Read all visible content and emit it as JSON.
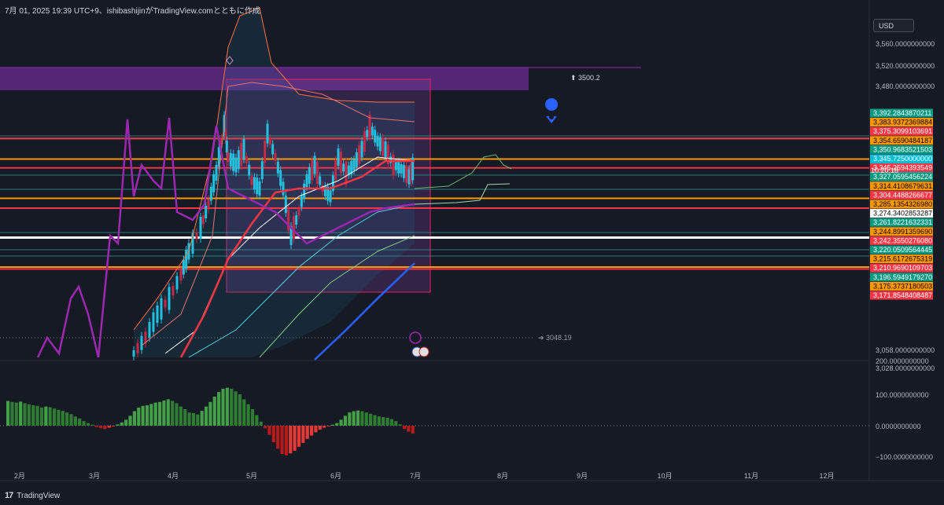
{
  "header": {
    "title": "7月 01, 2025 19:39 UTC+9、ishibashijinがTradingView.comとともに作成"
  },
  "footer": {
    "brand": "TradingView"
  },
  "currency": "USD",
  "timer": "10:20:18",
  "colors": {
    "background": "#161a25",
    "red_line": "#f23645",
    "orange": "#ff9800",
    "teal": "#089981",
    "purple": "#9c27b0",
    "blue": "#2962ff",
    "cyan": "#22c1e0",
    "histogram_up": "#2e7d32",
    "histogram_down": "#b71c1c"
  },
  "chart_data": [
    {
      "type": "candlestick",
      "title": "",
      "xlabel": "",
      "ylabel": "",
      "x_ticks": [
        "2月",
        "3月",
        "4月",
        "5月",
        "6月",
        "7月",
        "8月",
        "9月",
        "10月",
        "11月",
        "12月"
      ],
      "y_ticks": [
        "3,560.0000000000",
        "3,520.0000000000",
        "3,480.0000000000",
        "3,058.0000000000",
        "3,028.0000000000"
      ],
      "ylim": [
        3000,
        3600
      ],
      "annotations": [
        {
          "label": "3500.2",
          "icon": "arrow-up-icon"
        },
        {
          "label": "3048.19",
          "icon": "arrow-right-icon"
        }
      ],
      "price_labels": [
        {
          "value": "3,392.2843870211",
          "color": "#089981"
        },
        {
          "value": "3,383.9372369884",
          "color": "#ff9800"
        },
        {
          "value": "3,375.3099103691",
          "color": "#f23645"
        },
        {
          "value": "3,354.6590484187",
          "color": "#ff9800"
        },
        {
          "value": "3,350.9683521503",
          "color": "#089981"
        },
        {
          "value": "3,345.7250000000",
          "color": "#00bcd4"
        },
        {
          "value": "3,345.2594393549",
          "color": "#f23645"
        },
        {
          "value": "3,327.0595456224",
          "color": "#089981"
        },
        {
          "value": "3,314.4108679631",
          "color": "#ff9800"
        },
        {
          "value": "3,304.4488266677",
          "color": "#f23645"
        },
        {
          "value": "3,285.1354326980",
          "color": "#ff9800"
        },
        {
          "value": "3,274.3402853287",
          "color": "#ffffff"
        },
        {
          "value": "3,261.8221632331",
          "color": "#089981"
        },
        {
          "value": "3,244.8991359690",
          "color": "#ff9800"
        },
        {
          "value": "3,242.3550276080",
          "color": "#f23645"
        },
        {
          "value": "3,220.0509564445",
          "color": "#089981"
        },
        {
          "value": "3,215.6172675319",
          "color": "#ff9800"
        },
        {
          "value": "3,210.9690109703",
          "color": "#f23645"
        },
        {
          "value": "3,196.5949179270",
          "color": "#089981"
        },
        {
          "value": "3,175.3737180503",
          "color": "#ff9800"
        },
        {
          "value": "3,171.8548408487",
          "color": "#f23645"
        }
      ],
      "horizontal_levels": [
        {
          "value": 3375,
          "color": "#f23645"
        },
        {
          "value": 3354,
          "color": "#ff9800"
        },
        {
          "value": 3345,
          "color": "#f23645"
        },
        {
          "value": 3314,
          "color": "#ff9800"
        },
        {
          "value": 3304,
          "color": "#f23645"
        },
        {
          "value": 3274,
          "color": "#ffffff"
        },
        {
          "value": 3244,
          "color": "#ff9800"
        },
        {
          "value": 3242,
          "color": "#f23645"
        }
      ]
    },
    {
      "type": "bar",
      "title": "",
      "y_ticks": [
        "200.0000000000",
        "100.0000000000",
        "0.0000000000",
        "−100.0000000000"
      ],
      "ylim": [
        -150,
        200
      ],
      "values": [
        75,
        72,
        70,
        73,
        68,
        65,
        62,
        60,
        55,
        58,
        56,
        52,
        48,
        45,
        40,
        35,
        28,
        22,
        14,
        8,
        3,
        -4,
        -7,
        -10,
        -6,
        -2,
        4,
        10,
        18,
        30,
        44,
        55,
        60,
        62,
        66,
        70,
        72,
        76,
        80,
        75,
        68,
        58,
        50,
        40,
        38,
        34,
        45,
        58,
        72,
        88,
        102,
        112,
        115,
        112,
        104,
        95,
        80,
        65,
        50,
        32,
        12,
        -8,
        -28,
        -50,
        -70,
        -86,
        -90,
        -84,
        -76,
        -64,
        -52,
        -40,
        -30,
        -20,
        -12,
        -6,
        -2,
        3,
        8,
        18,
        30,
        40,
        44,
        46,
        44,
        40,
        36,
        32,
        28,
        26,
        24,
        20,
        14,
        4,
        -10,
        -18,
        -24
      ]
    }
  ]
}
